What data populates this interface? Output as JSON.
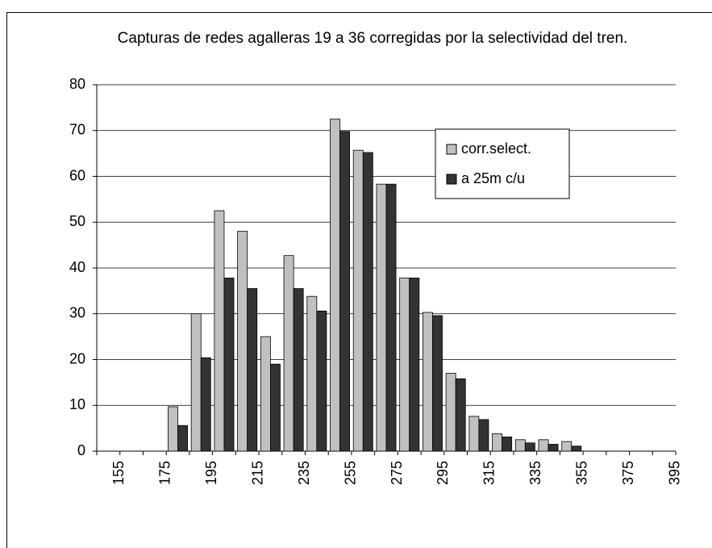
{
  "chart_data": {
    "type": "bar",
    "title": "Capturas de redes agalleras 19 a 36 corregidas por la selectividad del tren.",
    "categories": [
      "155",
      null,
      "175",
      null,
      "195",
      null,
      "215",
      null,
      "235",
      null,
      "255",
      null,
      "275",
      null,
      "295",
      null,
      "315",
      null,
      "335",
      null,
      "355",
      null,
      "375",
      null,
      "395"
    ],
    "series": [
      {
        "name": "corr.select.",
        "color": "#c0c0c0",
        "values": [
          null,
          null,
          null,
          9.7,
          30,
          52.5,
          48,
          25,
          42.7,
          33.8,
          72.5,
          65.7,
          58.3,
          37.8,
          30.3,
          17,
          7.6,
          3.8,
          2.5,
          2.5,
          2.1,
          null,
          null,
          null,
          null
        ]
      },
      {
        "name": "a 25m c/u",
        "color": "#333333",
        "values": [
          null,
          null,
          null,
          5.6,
          20.4,
          37.8,
          35.5,
          19,
          35.5,
          30.6,
          69.8,
          65.2,
          58.3,
          37.8,
          29.6,
          15.8,
          6.9,
          3.1,
          1.8,
          1.5,
          1.1,
          null,
          null,
          null,
          null
        ]
      }
    ],
    "ylim": [
      0,
      80
    ],
    "yticks": [
      0,
      10,
      20,
      30,
      40,
      50,
      60,
      70,
      80
    ],
    "grid": true,
    "legend": "upper right"
  }
}
